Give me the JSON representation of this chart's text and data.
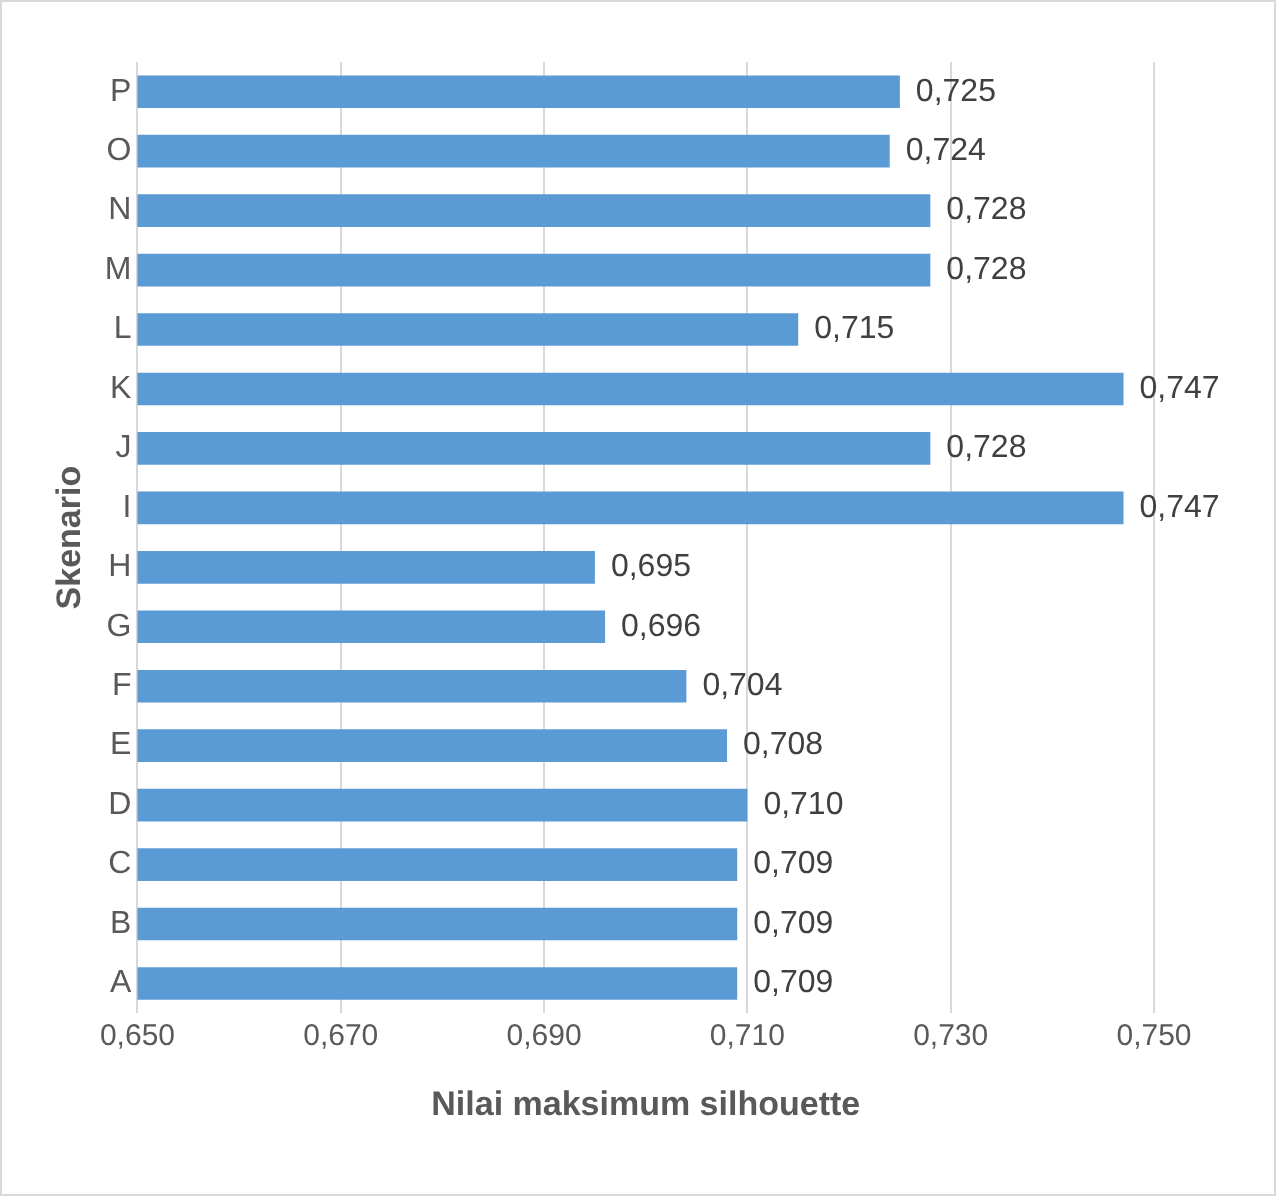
{
  "chart_data": {
    "type": "bar",
    "orientation": "horizontal",
    "xlabel": "Nilai maksimum silhouette",
    "ylabel": "Skenario",
    "categories": [
      "P",
      "O",
      "N",
      "M",
      "L",
      "K",
      "J",
      "I",
      "H",
      "G",
      "F",
      "E",
      "D",
      "C",
      "B",
      "A"
    ],
    "values": [
      0.725,
      0.724,
      0.728,
      0.728,
      0.715,
      0.747,
      0.728,
      0.747,
      0.695,
      0.696,
      0.704,
      0.708,
      0.71,
      0.709,
      0.709,
      0.709
    ],
    "value_labels": [
      "0,725",
      "0,724",
      "0,728",
      "0,728",
      "0,715",
      "0,747",
      "0,728",
      "0,747",
      "0,695",
      "0,696",
      "0,704",
      "0,708",
      "0,710",
      "0,709",
      "0,709",
      "0,709"
    ],
    "color": "#5b9bd5",
    "xlim": [
      0.65,
      0.75
    ],
    "xticks": [
      {
        "value": 0.65,
        "label": "0,650"
      },
      {
        "value": 0.67,
        "label": "0,670"
      },
      {
        "value": 0.69,
        "label": "0,690"
      },
      {
        "value": 0.71,
        "label": "0,710"
      },
      {
        "value": 0.73,
        "label": "0,730"
      },
      {
        "value": 0.75,
        "label": "0,750"
      }
    ],
    "grid": "x",
    "legend": false
  }
}
